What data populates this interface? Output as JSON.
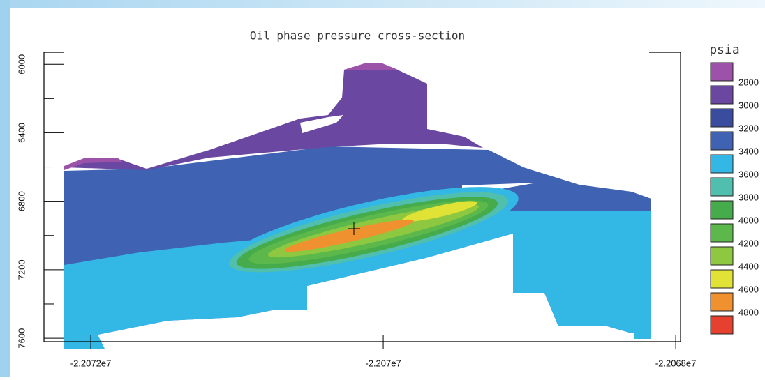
{
  "chart_data": {
    "type": "contour",
    "title": "Oil phase pressure cross-section",
    "xlim": [
      -22072320,
      -22067967
    ],
    "xticks": [
      {
        "value": -22072000,
        "label": "-2.2072e7"
      },
      {
        "value": -22070000,
        "label": "-2.207e7"
      },
      {
        "value": -22068000,
        "label": "-2.2068e7"
      }
    ],
    "ylim": [
      5930,
      7620
    ],
    "y_inverted": true,
    "yticks": [
      6000,
      6400,
      6800,
      7200,
      7600
    ],
    "yminorticks": [
      6200,
      6600,
      7000,
      7400
    ],
    "legend": {
      "title": "psia",
      "levels": [
        2800,
        3000,
        3200,
        3400,
        3600,
        3800,
        4000,
        4200,
        4400,
        4600,
        4800
      ],
      "colors": [
        "#9b52a8",
        "#6a48a2",
        "#3a4c9e",
        "#3f62b3",
        "#33b8e6",
        "#50bfae",
        "#46ab4a",
        "#5cb84a",
        "#8dc840",
        "#e0e235",
        "#f0912f",
        "#e6402e"
      ]
    }
  }
}
